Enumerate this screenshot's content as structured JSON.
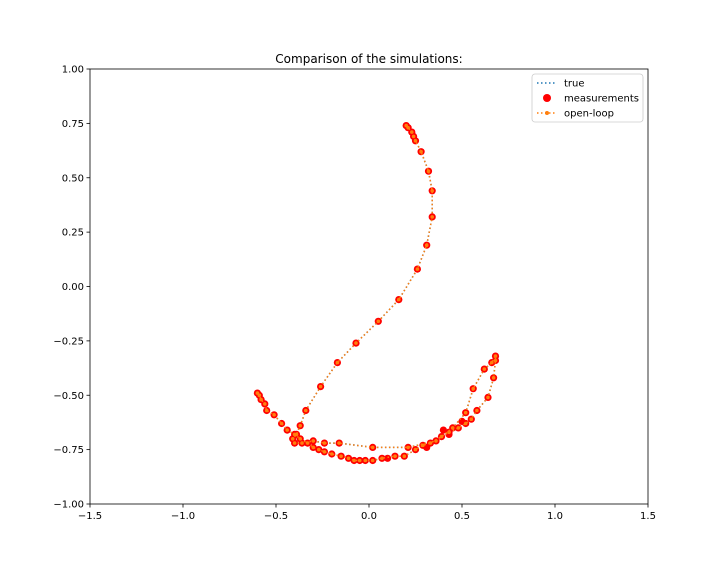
{
  "chart_data": {
    "type": "scatter",
    "title": "Comparison of the simulations:",
    "xlabel": "",
    "ylabel": "",
    "xlim": [
      -1.5,
      1.5
    ],
    "ylim": [
      -1.0,
      1.0
    ],
    "xticks": [
      -1.5,
      -1.0,
      -0.5,
      0.0,
      0.5,
      1.0,
      1.5
    ],
    "yticks": [
      -1.0,
      -0.75,
      -0.5,
      -0.25,
      0.0,
      0.25,
      0.5,
      0.75,
      1.0
    ],
    "xtick_labels": [
      "−1.5",
      "−1.0",
      "−0.5",
      "0.0",
      "0.5",
      "1.0",
      "1.5"
    ],
    "ytick_labels": [
      "−1.00",
      "−0.75",
      "−0.50",
      "−0.25",
      "0.00",
      "0.25",
      "0.50",
      "0.75",
      "1.00"
    ],
    "grid": false,
    "legend_position": "top-right",
    "colors": {
      "true": "#1f77b4",
      "measurements": "#ff0000",
      "open_loop": "#ff7f0e"
    },
    "series": [
      {
        "name": "true",
        "style": "dotted-line",
        "points": [
          [
            0.2,
            0.74
          ],
          [
            0.21,
            0.73
          ],
          [
            0.23,
            0.71
          ],
          [
            0.24,
            0.69
          ],
          [
            0.25,
            0.67
          ],
          [
            0.28,
            0.62
          ],
          [
            0.32,
            0.53
          ],
          [
            0.34,
            0.44
          ],
          [
            0.34,
            0.32
          ],
          [
            0.31,
            0.19
          ],
          [
            0.26,
            0.08
          ],
          [
            0.16,
            -0.06
          ],
          [
            0.05,
            -0.16
          ],
          [
            -0.07,
            -0.26
          ],
          [
            -0.17,
            -0.35
          ],
          [
            -0.26,
            -0.46
          ],
          [
            -0.34,
            -0.57
          ],
          [
            -0.37,
            -0.64
          ],
          [
            -0.39,
            -0.68
          ],
          [
            -0.41,
            -0.7
          ],
          [
            -0.4,
            -0.72
          ],
          [
            -0.36,
            -0.72
          ],
          [
            -0.3,
            -0.71
          ],
          [
            -0.24,
            -0.72
          ],
          [
            -0.16,
            -0.72
          ],
          [
            0.02,
            -0.74
          ],
          [
            0.21,
            -0.74
          ],
          [
            0.36,
            -0.71
          ],
          [
            0.45,
            -0.65
          ],
          [
            0.52,
            -0.58
          ],
          [
            0.56,
            -0.47
          ],
          [
            0.62,
            -0.38
          ],
          [
            0.66,
            -0.35
          ],
          [
            0.68,
            -0.32
          ],
          [
            0.68,
            -0.34
          ],
          [
            0.67,
            -0.42
          ],
          [
            0.64,
            -0.51
          ],
          [
            0.58,
            -0.57
          ],
          [
            0.55,
            -0.61
          ],
          [
            0.52,
            -0.63
          ],
          [
            0.48,
            -0.65
          ],
          [
            0.43,
            -0.67
          ],
          [
            0.39,
            -0.69
          ],
          [
            0.33,
            -0.72
          ],
          [
            0.29,
            -0.73
          ],
          [
            0.25,
            -0.75
          ],
          [
            0.19,
            -0.78
          ],
          [
            0.14,
            -0.78
          ],
          [
            0.07,
            -0.79
          ],
          [
            0.02,
            -0.8
          ],
          [
            -0.02,
            -0.8
          ],
          [
            -0.05,
            -0.8
          ],
          [
            -0.08,
            -0.8
          ],
          [
            -0.11,
            -0.79
          ],
          [
            -0.15,
            -0.78
          ],
          [
            -0.2,
            -0.77
          ],
          [
            -0.24,
            -0.76
          ],
          [
            -0.27,
            -0.75
          ],
          [
            -0.3,
            -0.74
          ],
          [
            -0.33,
            -0.72
          ],
          [
            -0.37,
            -0.7
          ],
          [
            -0.4,
            -0.68
          ],
          [
            -0.44,
            -0.66
          ],
          [
            -0.47,
            -0.63
          ],
          [
            -0.51,
            -0.59
          ],
          [
            -0.55,
            -0.57
          ],
          [
            -0.56,
            -0.54
          ],
          [
            -0.58,
            -0.52
          ],
          [
            -0.59,
            -0.5
          ],
          [
            -0.6,
            -0.49
          ]
        ]
      },
      {
        "name": "measurements",
        "style": "markers",
        "points": [
          [
            0.2,
            0.74
          ],
          [
            0.21,
            0.73
          ],
          [
            0.23,
            0.71
          ],
          [
            0.24,
            0.69
          ],
          [
            0.25,
            0.67
          ],
          [
            0.28,
            0.62
          ],
          [
            0.32,
            0.53
          ],
          [
            0.34,
            0.44
          ],
          [
            0.34,
            0.32
          ],
          [
            0.31,
            0.19
          ],
          [
            0.26,
            0.08
          ],
          [
            0.16,
            -0.06
          ],
          [
            0.05,
            -0.16
          ],
          [
            -0.07,
            -0.26
          ],
          [
            -0.17,
            -0.35
          ],
          [
            -0.26,
            -0.46
          ],
          [
            -0.34,
            -0.57
          ],
          [
            -0.37,
            -0.64
          ],
          [
            -0.39,
            -0.68
          ],
          [
            -0.41,
            -0.7
          ],
          [
            -0.4,
            -0.72
          ],
          [
            -0.36,
            -0.72
          ],
          [
            -0.3,
            -0.71
          ],
          [
            -0.24,
            -0.72
          ],
          [
            -0.16,
            -0.72
          ],
          [
            0.02,
            -0.74
          ],
          [
            0.21,
            -0.74
          ],
          [
            0.36,
            -0.71
          ],
          [
            0.45,
            -0.65
          ],
          [
            0.52,
            -0.58
          ],
          [
            0.56,
            -0.47
          ],
          [
            0.62,
            -0.38
          ],
          [
            0.66,
            -0.35
          ],
          [
            0.68,
            -0.32
          ],
          [
            0.68,
            -0.34
          ],
          [
            0.67,
            -0.42
          ],
          [
            0.64,
            -0.51
          ],
          [
            0.58,
            -0.57
          ],
          [
            0.55,
            -0.61
          ],
          [
            0.52,
            -0.63
          ],
          [
            0.48,
            -0.65
          ],
          [
            0.43,
            -0.67
          ],
          [
            0.39,
            -0.69
          ],
          [
            0.33,
            -0.72
          ],
          [
            0.29,
            -0.73
          ],
          [
            0.25,
            -0.75
          ],
          [
            0.19,
            -0.78
          ],
          [
            0.14,
            -0.78
          ],
          [
            0.07,
            -0.79
          ],
          [
            0.02,
            -0.8
          ],
          [
            -0.02,
            -0.8
          ],
          [
            -0.05,
            -0.8
          ],
          [
            -0.08,
            -0.8
          ],
          [
            -0.11,
            -0.79
          ],
          [
            -0.15,
            -0.78
          ],
          [
            -0.2,
            -0.77
          ],
          [
            -0.24,
            -0.76
          ],
          [
            -0.27,
            -0.75
          ],
          [
            -0.3,
            -0.74
          ],
          [
            -0.33,
            -0.72
          ],
          [
            -0.37,
            -0.7
          ],
          [
            -0.4,
            -0.68
          ],
          [
            -0.44,
            -0.66
          ],
          [
            -0.47,
            -0.63
          ],
          [
            -0.51,
            -0.59
          ],
          [
            -0.55,
            -0.57
          ],
          [
            -0.56,
            -0.54
          ],
          [
            -0.58,
            -0.52
          ],
          [
            -0.59,
            -0.5
          ],
          [
            -0.6,
            -0.49
          ],
          [
            0.4,
            -0.66
          ],
          [
            0.43,
            -0.68
          ],
          [
            0.1,
            -0.79
          ],
          [
            0.31,
            -0.74
          ],
          [
            0.5,
            -0.62
          ]
        ]
      },
      {
        "name": "open-loop",
        "style": "dotted-line-with-markers",
        "points": [
          [
            0.2,
            0.74
          ],
          [
            0.21,
            0.73
          ],
          [
            0.23,
            0.71
          ],
          [
            0.24,
            0.69
          ],
          [
            0.25,
            0.67
          ],
          [
            0.28,
            0.62
          ],
          [
            0.32,
            0.53
          ],
          [
            0.34,
            0.44
          ],
          [
            0.34,
            0.32
          ],
          [
            0.31,
            0.19
          ],
          [
            0.26,
            0.08
          ],
          [
            0.16,
            -0.06
          ],
          [
            0.05,
            -0.16
          ],
          [
            -0.07,
            -0.26
          ],
          [
            -0.17,
            -0.35
          ],
          [
            -0.26,
            -0.46
          ],
          [
            -0.34,
            -0.57
          ],
          [
            -0.37,
            -0.64
          ],
          [
            -0.39,
            -0.68
          ],
          [
            -0.41,
            -0.7
          ],
          [
            -0.4,
            -0.72
          ],
          [
            -0.36,
            -0.72
          ],
          [
            -0.3,
            -0.71
          ],
          [
            -0.24,
            -0.72
          ],
          [
            -0.16,
            -0.72
          ],
          [
            0.02,
            -0.74
          ],
          [
            0.21,
            -0.74
          ],
          [
            0.36,
            -0.71
          ],
          [
            0.45,
            -0.65
          ],
          [
            0.52,
            -0.58
          ],
          [
            0.56,
            -0.47
          ],
          [
            0.62,
            -0.38
          ],
          [
            0.66,
            -0.35
          ],
          [
            0.68,
            -0.32
          ],
          [
            0.68,
            -0.34
          ],
          [
            0.67,
            -0.42
          ],
          [
            0.64,
            -0.51
          ],
          [
            0.58,
            -0.57
          ],
          [
            0.55,
            -0.61
          ],
          [
            0.52,
            -0.63
          ],
          [
            0.48,
            -0.65
          ],
          [
            0.43,
            -0.67
          ],
          [
            0.39,
            -0.69
          ],
          [
            0.33,
            -0.72
          ],
          [
            0.29,
            -0.73
          ],
          [
            0.25,
            -0.75
          ],
          [
            0.19,
            -0.78
          ],
          [
            0.14,
            -0.78
          ],
          [
            0.07,
            -0.79
          ],
          [
            0.02,
            -0.8
          ],
          [
            -0.02,
            -0.8
          ],
          [
            -0.05,
            -0.8
          ],
          [
            -0.08,
            -0.8
          ],
          [
            -0.11,
            -0.79
          ],
          [
            -0.15,
            -0.78
          ],
          [
            -0.2,
            -0.77
          ],
          [
            -0.24,
            -0.76
          ],
          [
            -0.27,
            -0.75
          ],
          [
            -0.3,
            -0.74
          ],
          [
            -0.33,
            -0.72
          ],
          [
            -0.37,
            -0.7
          ],
          [
            -0.4,
            -0.68
          ],
          [
            -0.44,
            -0.66
          ],
          [
            -0.47,
            -0.63
          ],
          [
            -0.51,
            -0.59
          ],
          [
            -0.55,
            -0.57
          ],
          [
            -0.56,
            -0.54
          ],
          [
            -0.58,
            -0.52
          ],
          [
            -0.59,
            -0.5
          ],
          [
            -0.6,
            -0.49
          ]
        ]
      }
    ]
  }
}
